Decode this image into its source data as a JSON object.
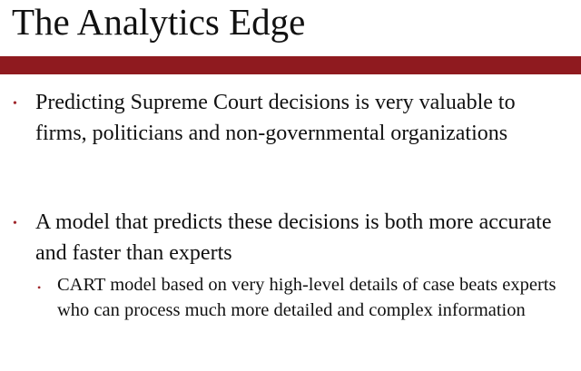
{
  "slide": {
    "title": "The Analytics Edge",
    "accent_color": "#8f1a1f",
    "bullet_color": "#a0282c",
    "bullets": [
      {
        "marker": "•",
        "text": "Predicting Supreme Court decisions is very valuable to firms, politicians and non-governmental organizations"
      },
      {
        "marker": "•",
        "text": "A model that predicts these decisions is both more accurate and faster than experts",
        "sub_bullets": [
          {
            "marker": "•",
            "text": "CART model based on very high-level details of case beats experts who can process much more detailed and complex information"
          }
        ]
      }
    ]
  }
}
